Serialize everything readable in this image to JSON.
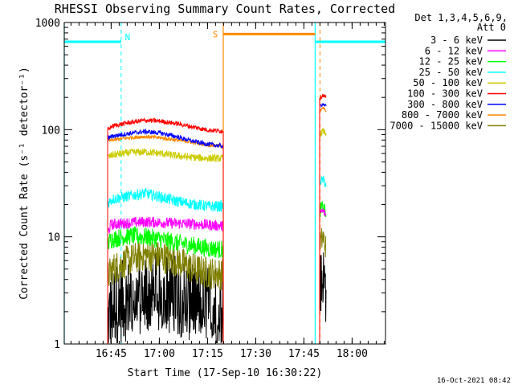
{
  "chart_data": {
    "type": "line",
    "title": "RHESSI Observing Summary Count Rates, Corrected",
    "xlabel": "Start Time (17-Sep-10 16:30:22)",
    "ylabel": "Corrected Count Rate (s⁻¹ detector⁻¹)",
    "x_unit": "minutes after 16:30:22",
    "xlim": [
      0,
      100
    ],
    "ylim": [
      1,
      1000
    ],
    "y_scale": "log",
    "x_ticks": [
      {
        "label": "16:45",
        "x": 14.6
      },
      {
        "label": "17:00",
        "x": 29.6
      },
      {
        "label": "17:15",
        "x": 44.6
      },
      {
        "label": "17:30",
        "x": 59.6
      },
      {
        "label": "17:45",
        "x": 74.6
      },
      {
        "label": "18:00",
        "x": 89.6
      }
    ],
    "x_minor_step": 2.5,
    "y_ticks": [
      {
        "label": "1",
        "value": 1
      },
      {
        "label": "10",
        "value": 10
      },
      {
        "label": "100",
        "value": 100
      },
      {
        "label": "1000",
        "value": 1000
      }
    ],
    "legend_header": [
      "Det 1,3,4,5,6,9,",
      "Att 0"
    ],
    "legend_position": "right",
    "series": [
      {
        "name": "3 - 6 keV",
        "color": "#000000",
        "noise": 0.9,
        "points": [
          [
            13.5,
            1.5
          ],
          [
            15,
            2.3
          ],
          [
            20,
            2.6
          ],
          [
            25,
            2.9
          ],
          [
            30,
            3.0
          ],
          [
            35,
            2.9
          ],
          [
            40,
            2.5
          ],
          [
            44,
            2.3
          ],
          [
            49.5,
            2.3
          ]
        ],
        "points2": [
          [
            79.5,
            3.5
          ],
          [
            80.5,
            4.2
          ],
          [
            81.5,
            3.4
          ]
        ]
      },
      {
        "name": "6 - 12 keV",
        "color": "#ff00ff",
        "noise": 0.12,
        "points": [
          [
            13.5,
            10.8
          ],
          [
            14.5,
            13.0
          ],
          [
            20,
            13.5
          ],
          [
            25,
            13.8
          ],
          [
            30,
            13.6
          ],
          [
            35,
            13.3
          ],
          [
            40,
            13.2
          ],
          [
            45,
            12.9
          ],
          [
            49.5,
            12.6
          ]
        ],
        "points2": [
          [
            79.5,
            16.5
          ],
          [
            80.5,
            17.5
          ],
          [
            81.5,
            16.0
          ]
        ]
      },
      {
        "name": "12 - 25 keV",
        "color": "#00ff00",
        "noise": 0.2,
        "points": [
          [
            13.5,
            8.5
          ],
          [
            14.5,
            9.5
          ],
          [
            20,
            10.2
          ],
          [
            25,
            10.0
          ],
          [
            30,
            9.5
          ],
          [
            35,
            8.8
          ],
          [
            40,
            8.3
          ],
          [
            45,
            7.8
          ],
          [
            49.5,
            7.6
          ]
        ],
        "points2": [
          [
            79.5,
            17.5
          ],
          [
            80.5,
            19.0
          ],
          [
            81.5,
            16.0
          ]
        ]
      },
      {
        "name": "25 - 50 keV",
        "color": "#00ffff",
        "noise": 0.12,
        "points": [
          [
            13.5,
            20.5
          ],
          [
            15,
            22.5
          ],
          [
            20,
            24.0
          ],
          [
            25,
            25.5
          ],
          [
            30,
            23.5
          ],
          [
            35,
            21.5
          ],
          [
            40,
            20.2
          ],
          [
            45,
            19.2
          ],
          [
            49.5,
            19.3
          ]
        ],
        "points2": [
          [
            79.5,
            33.0
          ],
          [
            80.5,
            34.0
          ],
          [
            81.5,
            31.0
          ]
        ]
      },
      {
        "name": "50 - 100 keV",
        "color": "#cccc00",
        "noise": 0.08,
        "points": [
          [
            13.5,
            55
          ],
          [
            15,
            58
          ],
          [
            20,
            61
          ],
          [
            25,
            62
          ],
          [
            30,
            60
          ],
          [
            35,
            57
          ],
          [
            40,
            55
          ],
          [
            45,
            54
          ],
          [
            49.5,
            54
          ]
        ],
        "points2": [
          [
            79.5,
            88
          ],
          [
            80.5,
            98
          ],
          [
            81.5,
            92
          ]
        ]
      },
      {
        "name": "100 - 300 keV",
        "color": "#ff0000",
        "noise": 0.05,
        "points": [
          [
            13.5,
            100
          ],
          [
            15,
            108
          ],
          [
            20,
            116
          ],
          [
            25,
            122
          ],
          [
            30,
            120
          ],
          [
            35,
            114
          ],
          [
            40,
            106
          ],
          [
            45,
            99
          ],
          [
            49.5,
            97
          ]
        ],
        "points2": [
          [
            79.5,
            195
          ],
          [
            80.5,
            210
          ],
          [
            81.5,
            200
          ]
        ]
      },
      {
        "name": "300 - 800 keV",
        "color": "#0000ff",
        "noise": 0.05,
        "points": [
          [
            13.5,
            83
          ],
          [
            15,
            87
          ],
          [
            20,
            92
          ],
          [
            25,
            96
          ],
          [
            30,
            93
          ],
          [
            35,
            86
          ],
          [
            40,
            78
          ],
          [
            45,
            73
          ],
          [
            49.5,
            70
          ]
        ],
        "points2": [
          [
            79.5,
            165
          ],
          [
            80.5,
            175
          ],
          [
            81.5,
            165
          ]
        ]
      },
      {
        "name": "800 - 7000 keV",
        "color": "#ff8800",
        "noise": 0.04,
        "points": [
          [
            13.5,
            78
          ],
          [
            15,
            80
          ],
          [
            20,
            84
          ],
          [
            25,
            86
          ],
          [
            30,
            84
          ],
          [
            35,
            80
          ],
          [
            40,
            76
          ],
          [
            45,
            72
          ],
          [
            49.5,
            70
          ]
        ],
        "points2": [
          [
            79.5,
            145
          ],
          [
            80.5,
            160
          ],
          [
            81.5,
            150
          ]
        ]
      },
      {
        "name": "7000 - 15000 keV",
        "color": "#808000",
        "noise": 0.35,
        "points": [
          [
            13.5,
            4.2
          ],
          [
            15,
            5.0
          ],
          [
            20,
            6.0
          ],
          [
            25,
            6.8
          ],
          [
            30,
            6.5
          ],
          [
            35,
            6.0
          ],
          [
            40,
            5.0
          ],
          [
            45,
            4.6
          ],
          [
            49.5,
            4.5
          ]
        ],
        "points2": [
          [
            79.5,
            8.5
          ],
          [
            80.5,
            10.0
          ],
          [
            81.5,
            8.0
          ]
        ]
      }
    ],
    "annotations": {
      "night_label": "N",
      "saa_label": "S",
      "night_color": "#00ffff",
      "saa_color": "#ff8800",
      "night_intervals": [
        [
          0,
          17.7
        ],
        [
          78.1,
          100
        ]
      ],
      "saa_interval": [
        49.5,
        78.1
      ],
      "flag_level": 660,
      "saa_flag_level": 780
    },
    "footer_timestamp": "16-Oct-2021 08:42"
  }
}
